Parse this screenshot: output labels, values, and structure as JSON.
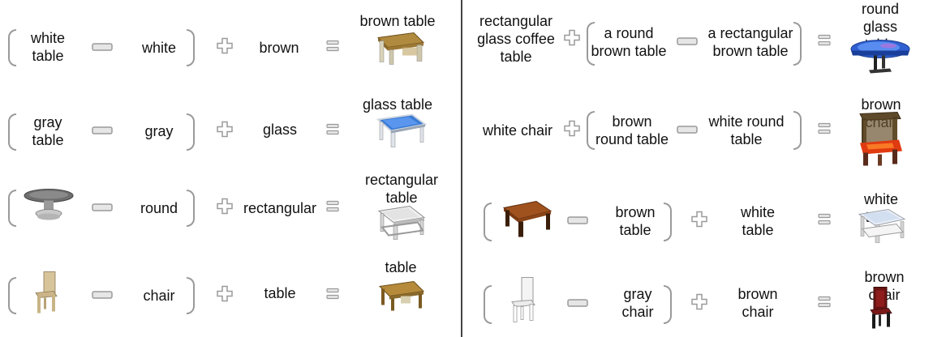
{
  "left_rows": [
    {
      "a": "white\ntable",
      "b": "white",
      "c": "brown",
      "result": "brown table",
      "image": "brown-table-icon"
    },
    {
      "a": "gray\ntable",
      "b": "gray",
      "c": "glass",
      "result": "glass table",
      "image": "glass-table-icon"
    },
    {
      "b": "round",
      "c": "rectangular",
      "result": "rectangular\ntable",
      "image": "rectangular-table-icon",
      "a_image": "round-gray-table-icon"
    },
    {
      "b": "chair",
      "c": "table",
      "result": "table",
      "image": "brown-table-icon",
      "a_image": "beige-chair-icon"
    }
  ],
  "right_rows": [
    {
      "a": "rectangular\nglass coffee\ntable",
      "b": "a round\nbrown table",
      "c": "a rectangular\nbrown table",
      "result": "round glass\ntable",
      "image": "round-glass-table-icon"
    },
    {
      "a": "white chair",
      "b": "brown\nround table",
      "c": "white round\ntable",
      "result": "brown chair",
      "image": "brown-chair-red-icon"
    },
    {
      "b": "brown\ntable",
      "c": "white\ntable",
      "result": "white table",
      "image": "white-table-icon",
      "a_image": "brown-wood-table-icon"
    },
    {
      "b": "gray\nchair",
      "c": "brown\nchair",
      "result": "brown chair",
      "image": "dark-red-chair-icon",
      "a_image": "white-chair-icon"
    }
  ],
  "colors": {
    "operator_stroke": "#9a9a9a",
    "operator_fill": "#e6e6e6",
    "divider": "#444444",
    "brown": "#8b5a2b",
    "glass": "#3a7bd5"
  }
}
